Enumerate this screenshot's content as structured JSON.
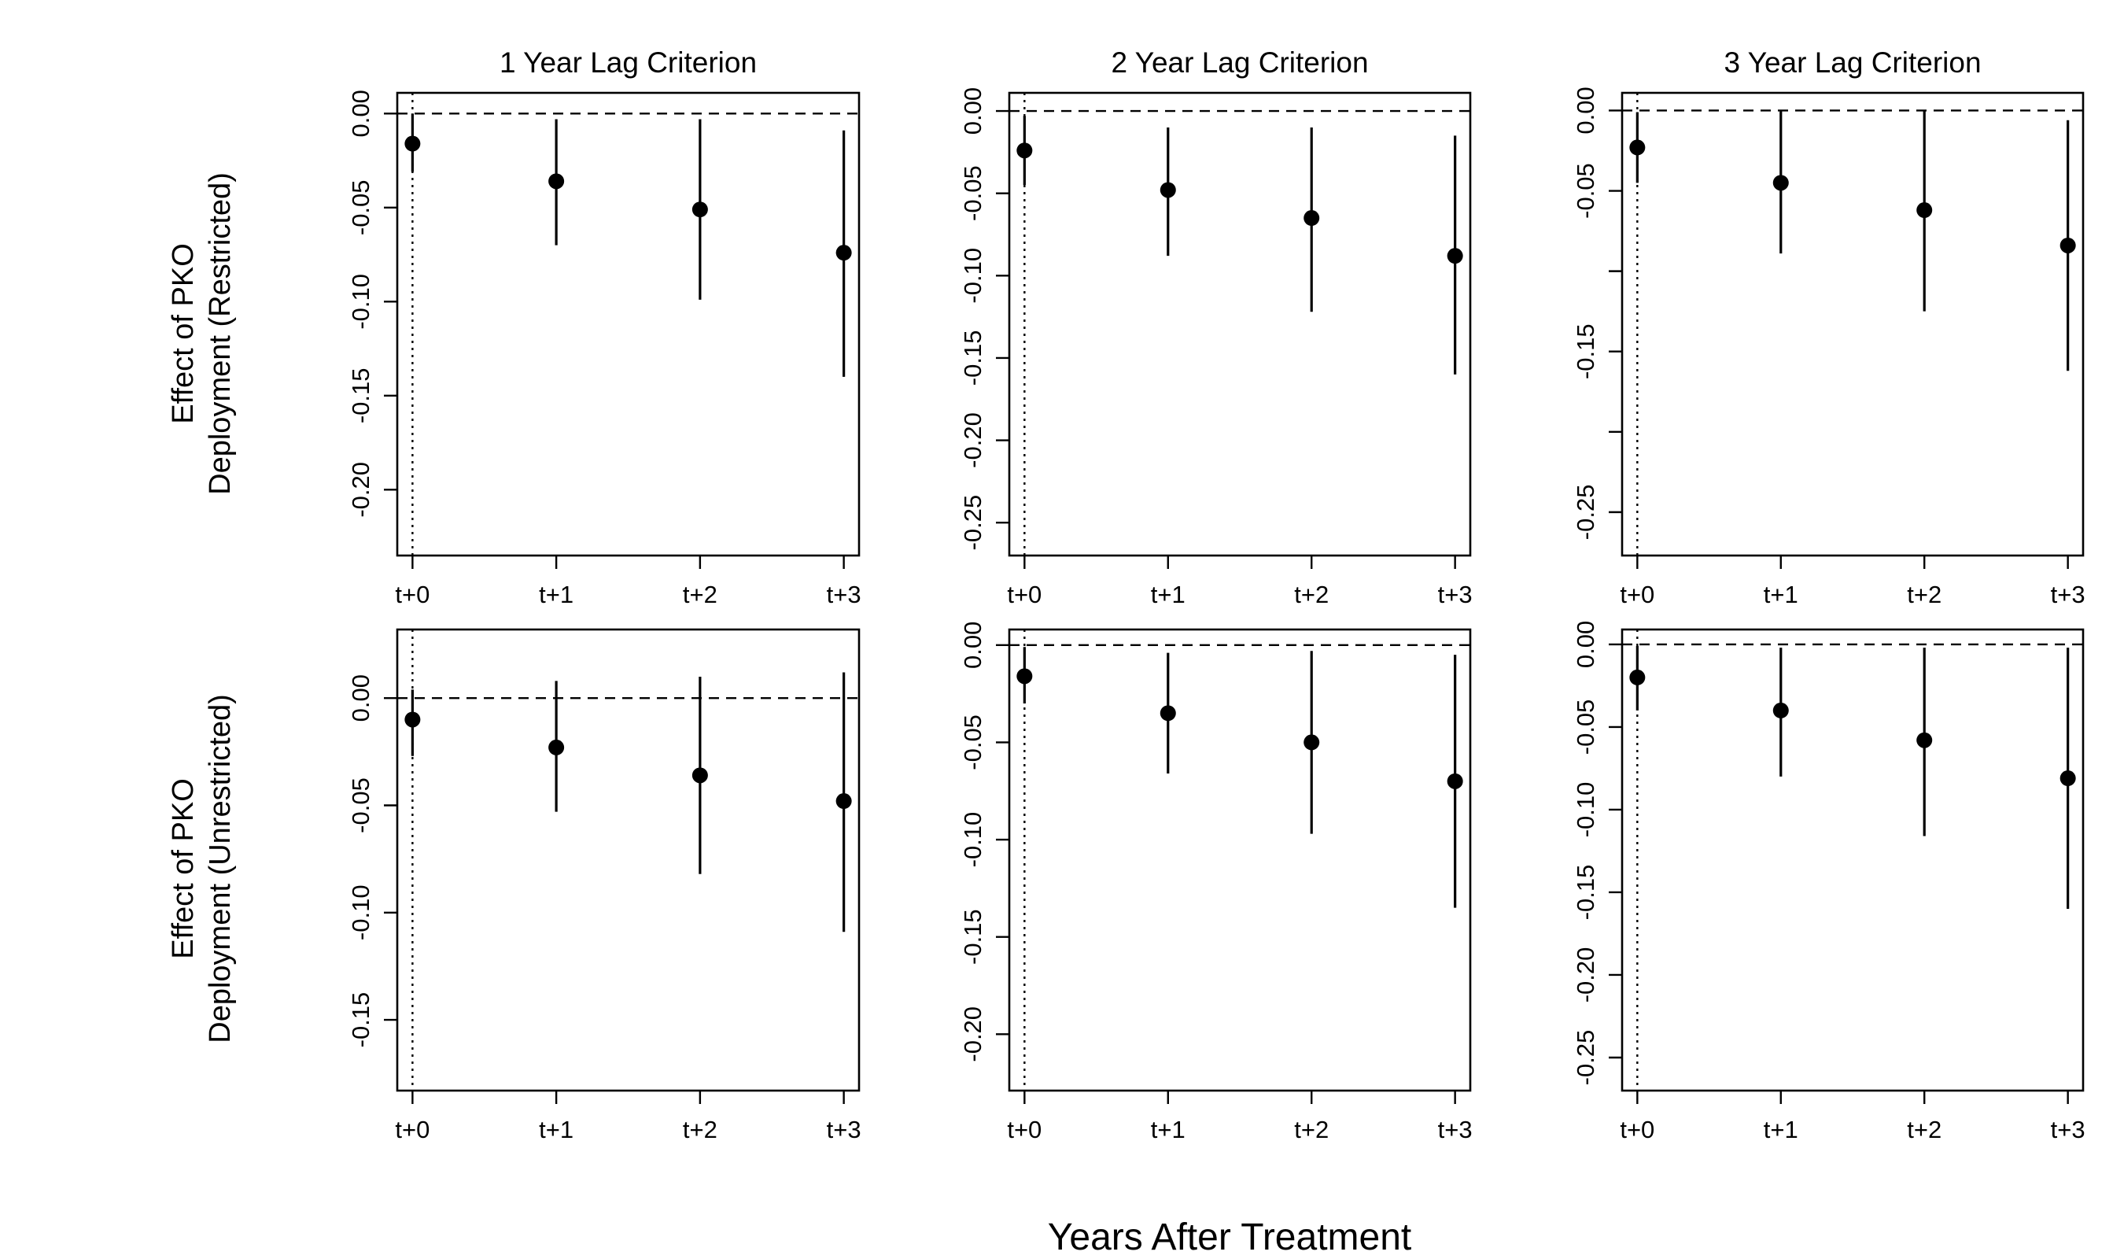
{
  "figure": {
    "x_title": "Years After Treatment",
    "row_labels": [
      [
        "Effect of PKO",
        "Deployment (Restricted)"
      ],
      [
        "Effect of PKO",
        "Deployment (Unrestricted)"
      ]
    ]
  },
  "chart_data": [
    {
      "type": "scatter",
      "title": "1 Year Lag Criterion",
      "categories": [
        "t+0",
        "t+1",
        "t+2",
        "t+3"
      ],
      "values": [
        -0.016,
        -0.036,
        -0.051,
        -0.074
      ],
      "ci_low": [
        -0.031,
        -0.07,
        -0.099,
        -0.14
      ],
      "ci_high": [
        0.0,
        -0.003,
        -0.003,
        -0.009
      ],
      "ylim": [
        -0.235,
        0.011
      ],
      "yticks": [
        0.0,
        -0.05,
        -0.1,
        -0.15,
        -0.2
      ],
      "ytick_labels": [
        "0.00",
        "-0.05",
        "-0.10",
        "-0.15",
        "-0.20"
      ],
      "reference_lines": {
        "horizontal_dashed_y": 0,
        "vertical_dotted_x": "t+0"
      }
    },
    {
      "type": "scatter",
      "title": "2 Year Lag Criterion",
      "categories": [
        "t+0",
        "t+1",
        "t+2",
        "t+3"
      ],
      "values": [
        -0.024,
        -0.048,
        -0.065,
        -0.088
      ],
      "ci_low": [
        -0.045,
        -0.088,
        -0.122,
        -0.16
      ],
      "ci_high": [
        -0.003,
        -0.01,
        -0.01,
        -0.015
      ],
      "ylim": [
        -0.27,
        0.011
      ],
      "yticks": [
        0.0,
        -0.05,
        -0.1,
        -0.15,
        -0.2,
        -0.25
      ],
      "ytick_labels": [
        "0.00",
        "-0.05",
        "-0.10",
        "-0.15",
        "-0.20",
        "-0.25"
      ],
      "reference_lines": {
        "horizontal_dashed_y": 0,
        "vertical_dotted_x": "t+0"
      }
    },
    {
      "type": "scatter",
      "title": "3 Year Lag Criterion",
      "categories": [
        "t+0",
        "t+1",
        "t+2",
        "t+3"
      ],
      "values": [
        -0.023,
        -0.045,
        -0.062,
        -0.084
      ],
      "ci_low": [
        -0.045,
        -0.089,
        -0.125,
        -0.162
      ],
      "ci_high": [
        -0.001,
        0.0,
        0.0,
        -0.006
      ],
      "ylim": [
        -0.277,
        0.011
      ],
      "yticks": [
        0.0,
        -0.05,
        -0.15,
        -0.25
      ],
      "ytick_labels": [
        "0.00",
        "-0.05",
        "-0.15",
        "-0.25"
      ],
      "minor_ticks": [
        -0.1,
        -0.2
      ],
      "reference_lines": {
        "horizontal_dashed_y": 0,
        "vertical_dotted_x": "t+0"
      }
    },
    {
      "type": "scatter",
      "title": "",
      "categories": [
        "t+0",
        "t+1",
        "t+2",
        "t+3"
      ],
      "values": [
        -0.01,
        -0.023,
        -0.036,
        -0.048
      ],
      "ci_low": [
        -0.027,
        -0.053,
        -0.082,
        -0.109
      ],
      "ci_high": [
        0.004,
        0.008,
        0.01,
        0.012
      ],
      "ylim": [
        -0.183,
        0.032
      ],
      "yticks": [
        0.0,
        -0.05,
        -0.1,
        -0.15
      ],
      "ytick_labels": [
        "0.00",
        "-0.05",
        "-0.10",
        "-0.15"
      ],
      "reference_lines": {
        "horizontal_dashed_y": 0,
        "vertical_dotted_x": "t+0"
      }
    },
    {
      "type": "scatter",
      "title": "",
      "categories": [
        "t+0",
        "t+1",
        "t+2",
        "t+3"
      ],
      "values": [
        -0.016,
        -0.035,
        -0.05,
        -0.07
      ],
      "ci_low": [
        -0.03,
        -0.066,
        -0.097,
        -0.135
      ],
      "ci_high": [
        -0.001,
        -0.004,
        -0.003,
        -0.005
      ],
      "ylim": [
        -0.229,
        0.008
      ],
      "yticks": [
        0.0,
        -0.05,
        -0.1,
        -0.15,
        -0.2
      ],
      "ytick_labels": [
        "0.00",
        "-0.05",
        "-0.10",
        "-0.15",
        "-0.20"
      ],
      "reference_lines": {
        "horizontal_dashed_y": 0,
        "vertical_dotted_x": "t+0"
      }
    },
    {
      "type": "scatter",
      "title": "",
      "categories": [
        "t+0",
        "t+1",
        "t+2",
        "t+3"
      ],
      "values": [
        -0.02,
        -0.04,
        -0.058,
        -0.081
      ],
      "ci_low": [
        -0.04,
        -0.08,
        -0.116,
        -0.16
      ],
      "ci_high": [
        -0.001,
        -0.002,
        -0.002,
        -0.002
      ],
      "ylim": [
        -0.27,
        0.009
      ],
      "yticks": [
        0.0,
        -0.05,
        -0.1,
        -0.15,
        -0.2,
        -0.25
      ],
      "ytick_labels": [
        "0.00",
        "-0.05",
        "-0.10",
        "-0.15",
        "-0.20",
        "-0.25"
      ],
      "reference_lines": {
        "horizontal_dashed_y": 0,
        "vertical_dotted_x": "t+0"
      }
    }
  ]
}
